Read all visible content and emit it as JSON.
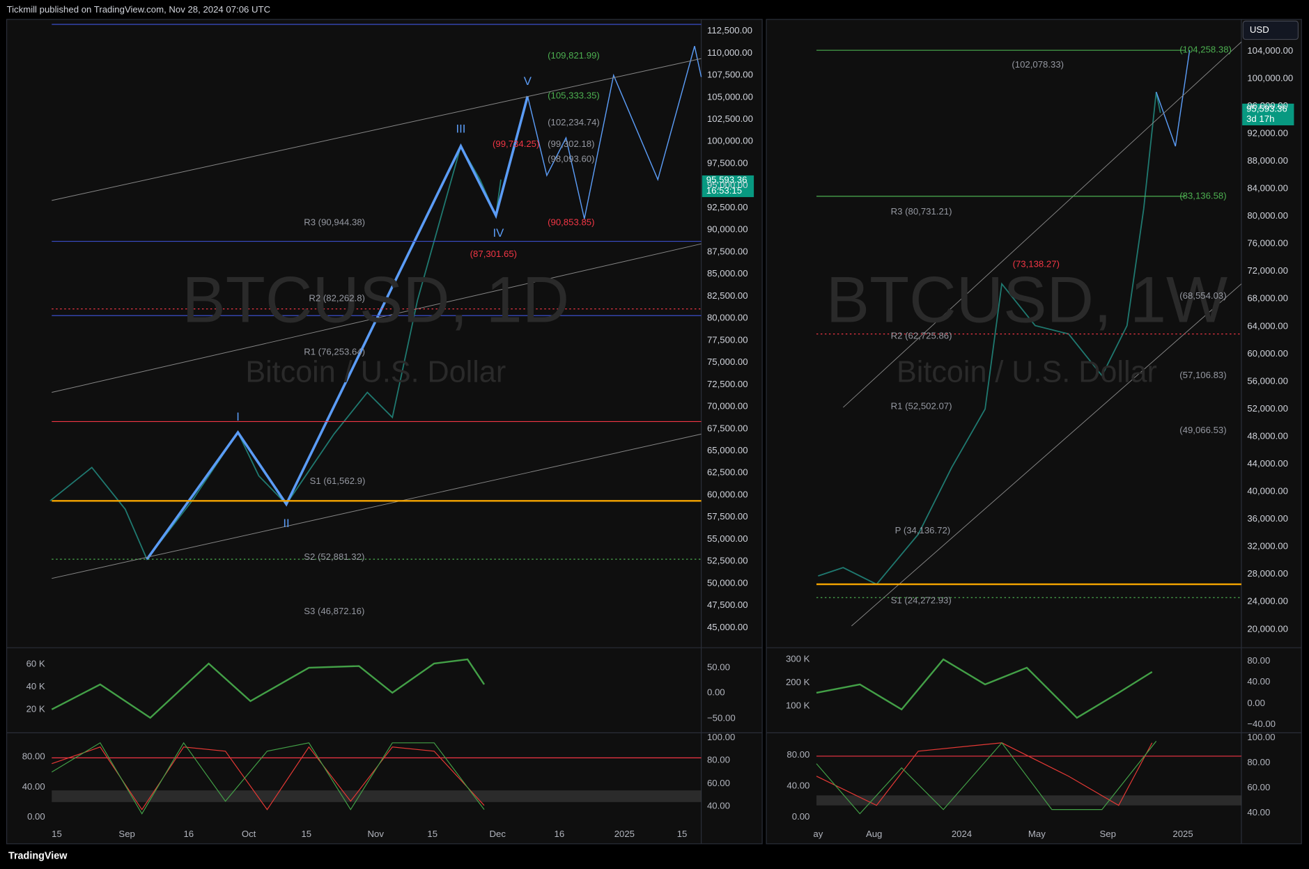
{
  "header": "Tickmill published on TradingView.com, Nov 28, 2024 07:06 UTC",
  "footer": "TradingView",
  "left": {
    "symbol": "BTCUSD, 1D",
    "description": "Bitcoin / U.S. Dollar",
    "price_axis": [
      "112,500.00",
      "110,000.00",
      "107,500.00",
      "105,000.00",
      "102,500.00",
      "100,000.00",
      "97,500.00",
      "95,000.00",
      "92,500.00",
      "90,000.00",
      "87,500.00",
      "85,000.00",
      "82,500.00",
      "80,000.00",
      "77,500.00",
      "75,000.00",
      "72,500.00",
      "70,000.00",
      "67,500.00",
      "65,000.00",
      "62,500.00",
      "60,000.00",
      "57,500.00",
      "55,000.00",
      "52,500.00",
      "50,000.00",
      "47,500.00",
      "45,000.00"
    ],
    "last_price": "95,593.36",
    "countdown": "16:53:15",
    "levels": [
      "(109,821.99)",
      "(105,333.35)",
      "(102,234.74)",
      "(99,734.25)",
      "(99,302.18)",
      "(98,093.60)",
      "R3 (90,944.38)",
      "(90,853.85)",
      "(87,301.65)",
      "R2 (82,262.8)",
      "R1 (76,253.64)",
      "S1 (61,562.9)",
      "S2 (52,881.32)",
      "S3 (46,872.16)"
    ],
    "waves": [
      "I",
      "II",
      "III",
      "IV",
      "V"
    ],
    "time_axis": [
      "15",
      "Sep",
      "16",
      "Oct",
      "15",
      "Nov",
      "15",
      "Dec",
      "16",
      "2025",
      "15"
    ],
    "volume_axis": [
      "60 K",
      "40 K",
      "20 K"
    ],
    "oscillator_axis": [
      "50.00",
      "0.00",
      "−50.00"
    ],
    "stoch_axis_left": [
      "80.00",
      "40.00",
      "0.00"
    ],
    "stoch_axis_right": [
      "100.00",
      "80.00",
      "60.00",
      "40.00"
    ]
  },
  "right": {
    "symbol": "BTCUSD, 1W",
    "description": "Bitcoin / U.S. Dollar",
    "currency": "USD",
    "price_axis": [
      "104,000.00",
      "100,000.00",
      "96,000.00",
      "92,000.00",
      "88,000.00",
      "84,000.00",
      "80,000.00",
      "76,000.00",
      "72,000.00",
      "68,000.00",
      "64,000.00",
      "60,000.00",
      "56,000.00",
      "52,000.00",
      "48,000.00",
      "44,000.00",
      "40,000.00",
      "36,000.00",
      "32,000.00",
      "28,000.00",
      "24,000.00",
      "20,000.00"
    ],
    "last_price": "95,593.36",
    "countdown": "3d 17h",
    "levels": [
      "(102,078.33)",
      "(104,258.38)",
      "(83,136.58)",
      "R3 (80,731.21)",
      "(73,138.27)",
      "(68,554.03)",
      "R2 (62,725.86)",
      "(57,106.83)",
      "R1 (52,502.07)",
      "(49,066.53)",
      "P (34,136.72)",
      "S1 (24,272.93)"
    ],
    "time_axis": [
      "ay",
      "Aug",
      "2024",
      "May",
      "Sep",
      "2025"
    ],
    "volume_axis": [
      "300 K",
      "200 K",
      "100 K"
    ],
    "oscillator_axis": [
      "80.00",
      "40.00",
      "0.00",
      "−40.00"
    ],
    "stoch_axis_left": [
      "80.00",
      "40.00",
      "0.00"
    ],
    "stoch_axis_right": [
      "100.00",
      "80.00",
      "60.00",
      "40.00"
    ]
  }
}
